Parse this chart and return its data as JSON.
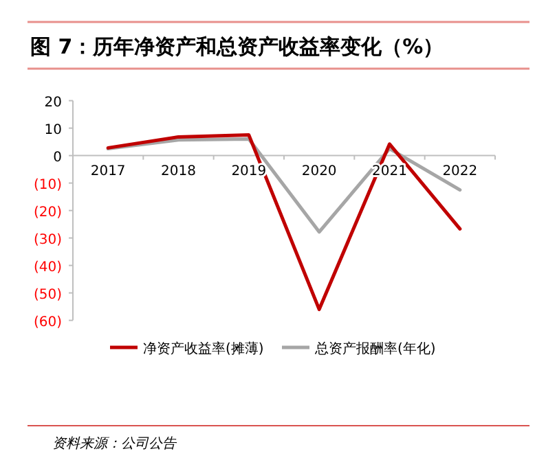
{
  "chart_data": {
    "type": "line",
    "title": "图 7：历年净资产和总资产收益率变化（%）",
    "categories": [
      "2017",
      "2018",
      "2019",
      "2020",
      "2021",
      "2022"
    ],
    "series": [
      {
        "name": "净资产收益率(摊薄)",
        "color": "#c00000",
        "values": [
          2.8,
          6.8,
          7.5,
          -56,
          4.2,
          -26.7
        ]
      },
      {
        "name": "总资产报酬率(年化)",
        "color": "#a6a6a6",
        "values": [
          2.5,
          5.7,
          6,
          -27.8,
          2.5,
          -12.5
        ]
      }
    ],
    "ylim": [
      -60,
      20
    ],
    "yticks": [
      {
        "value": -60,
        "label": "(60)"
      },
      {
        "value": -50,
        "label": "(50)"
      },
      {
        "value": -40,
        "label": "(40)"
      },
      {
        "value": -30,
        "label": "(30)"
      },
      {
        "value": -20,
        "label": "(20)"
      },
      {
        "value": -10,
        "label": "(10)"
      },
      0,
      10,
      20
    ],
    "grid": false,
    "legend": "bottom",
    "marker": "none",
    "line_style": "solid",
    "annotations": [
      "资料来源：公司公告"
    ]
  }
}
